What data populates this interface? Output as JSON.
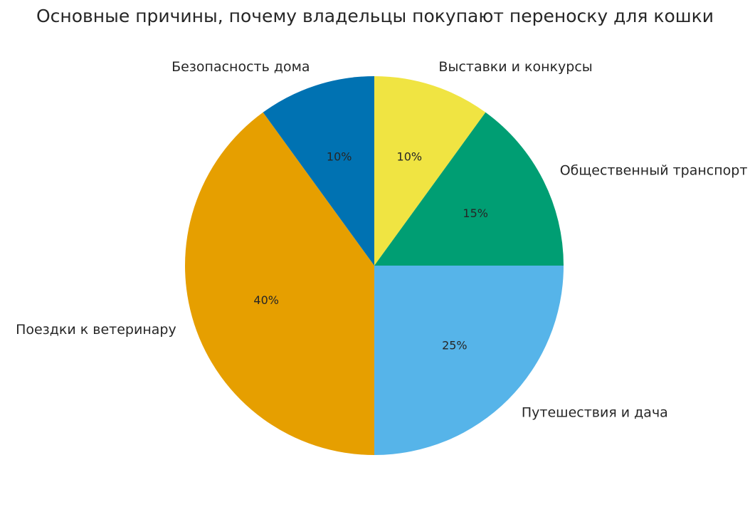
{
  "chart_data": {
    "type": "pie",
    "title": "Основные причины, почему владельцы покупают переноску для кошки",
    "start_angle_deg": 90,
    "direction": "clockwise",
    "slices": [
      {
        "label": "Выставки и конкурсы",
        "value": 10,
        "pct_label": "10%",
        "color": "#F0E442"
      },
      {
        "label": "Общественный транспорт",
        "value": 15,
        "pct_label": "15%",
        "color": "#009E73"
      },
      {
        "label": "Путешествия и дача",
        "value": 25,
        "pct_label": "25%",
        "color": "#56B4E9"
      },
      {
        "label": "Поездки к ветеринару",
        "value": 40,
        "pct_label": "40%",
        "color": "#E69F00"
      },
      {
        "label": "Безопасность дома",
        "value": 10,
        "pct_label": "10%",
        "color": "#0072B2"
      }
    ]
  }
}
